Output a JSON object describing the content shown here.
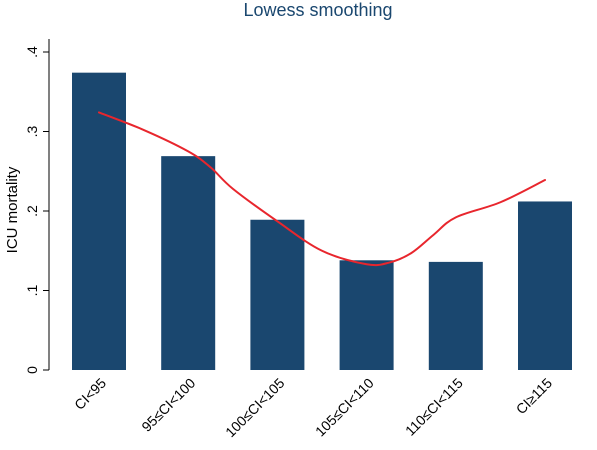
{
  "chart_data": {
    "type": "bar",
    "title": "Lowess smoothing",
    "xlabel": "",
    "ylabel": "ICU mortality",
    "ylim": [
      0,
      0.4
    ],
    "yticks": [
      {
        "value": 0,
        "label": "0"
      },
      {
        "value": 0.1,
        "label": ".1"
      },
      {
        "value": 0.2,
        "label": ".2"
      },
      {
        "value": 0.3,
        "label": ".3"
      },
      {
        "value": 0.4,
        "label": ".4"
      }
    ],
    "categories": [
      "CI<95",
      "95≤CI<100",
      "100≤CI<105",
      "105≤CI<110",
      "110≤CI<115",
      "CI≥115"
    ],
    "values": [
      0.374,
      0.269,
      0.189,
      0.138,
      0.136,
      0.212
    ],
    "lowess": {
      "x": [
        0,
        0.5,
        1,
        1.25,
        1.5,
        2,
        2.5,
        3,
        3.25,
        3.5,
        3.75,
        4,
        4.5,
        5
      ],
      "y": [
        0.324,
        0.302,
        0.275,
        0.255,
        0.228,
        0.187,
        0.15,
        0.133,
        0.135,
        0.147,
        0.17,
        0.192,
        0.211,
        0.239
      ]
    },
    "grid": false,
    "legend": "none",
    "colors": {
      "bar": "#1a476f",
      "line": "#e8262d",
      "title": "#1a476f"
    }
  }
}
